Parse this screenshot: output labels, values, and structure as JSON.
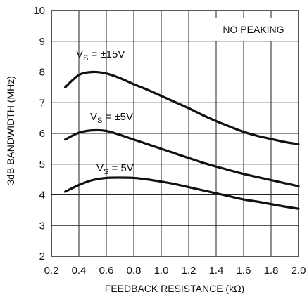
{
  "chart_data": {
    "type": "line",
    "title": "",
    "xlabel": "FEEDBACK RESISTANCE (kΩ)",
    "ylabel": "−3dB BANDWIDTH (MHz)",
    "xlim": [
      0.2,
      2.0
    ],
    "ylim": [
      2,
      10
    ],
    "x_ticks": [
      "0.2",
      "0.4",
      "0.6",
      "0.8",
      "1.0",
      "1.2",
      "1.4",
      "1.6",
      "1.8",
      "2.0"
    ],
    "y_ticks": [
      "2",
      "3",
      "4",
      "5",
      "6",
      "7",
      "8",
      "9",
      "10"
    ],
    "grid": true,
    "annotation": "NO PEAKING",
    "series": [
      {
        "name": "VS = ±15V",
        "label_main": "V",
        "label_sub": "S",
        "label_rest": " = ±15V",
        "x": [
          0.3,
          0.4,
          0.5,
          0.6,
          0.7,
          0.8,
          0.9,
          1.0,
          1.1,
          1.2,
          1.3,
          1.4,
          1.5,
          1.6,
          1.7,
          1.8,
          1.9,
          2.0
        ],
        "y": [
          7.5,
          7.9,
          8.0,
          7.95,
          7.8,
          7.6,
          7.42,
          7.22,
          7.02,
          6.82,
          6.6,
          6.4,
          6.22,
          6.05,
          5.92,
          5.82,
          5.72,
          5.65
        ]
      },
      {
        "name": "VS = ±5V",
        "label_main": "V",
        "label_sub": "S",
        "label_rest": " = ±5V",
        "x": [
          0.3,
          0.4,
          0.5,
          0.6,
          0.7,
          0.8,
          0.9,
          1.0,
          1.1,
          1.2,
          1.3,
          1.4,
          1.5,
          1.6,
          1.7,
          1.8,
          1.9,
          2.0
        ],
        "y": [
          5.8,
          6.02,
          6.1,
          6.08,
          5.95,
          5.8,
          5.65,
          5.5,
          5.35,
          5.2,
          5.05,
          4.92,
          4.8,
          4.68,
          4.58,
          4.48,
          4.38,
          4.28
        ]
      },
      {
        "name": "VS = 5V",
        "label_main": "V",
        "label_sub": "S",
        "label_rest": " = 5V",
        "x": [
          0.3,
          0.4,
          0.5,
          0.6,
          0.7,
          0.8,
          0.9,
          1.0,
          1.1,
          1.2,
          1.3,
          1.4,
          1.5,
          1.6,
          1.7,
          1.8,
          1.9,
          2.0
        ],
        "y": [
          4.1,
          4.32,
          4.48,
          4.55,
          4.56,
          4.55,
          4.5,
          4.43,
          4.35,
          4.25,
          4.15,
          4.05,
          3.95,
          3.85,
          3.78,
          3.7,
          3.62,
          3.55
        ]
      }
    ]
  }
}
